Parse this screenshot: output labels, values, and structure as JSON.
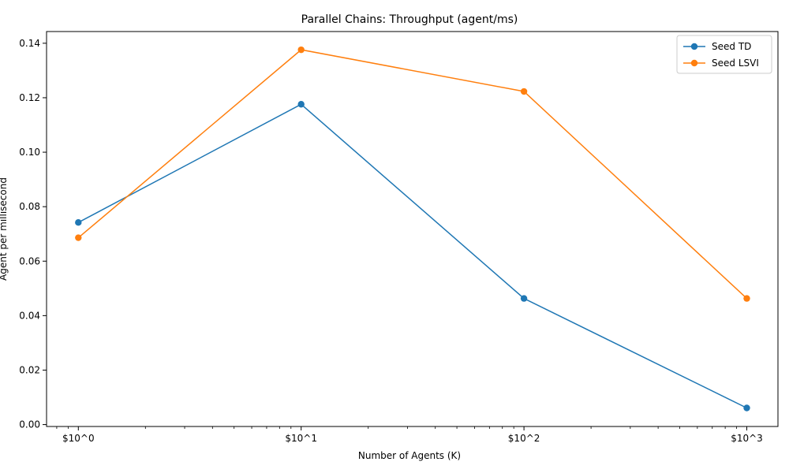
{
  "chart_data": {
    "type": "line",
    "title": "Parallel Chains: Throughput (agent/ms)",
    "xlabel": "Number of Agents (K)",
    "ylabel": "Agent per millisecond",
    "xscale": "log",
    "x": [
      1,
      10,
      100,
      1000
    ],
    "x_tick_labels": [
      "$10^0",
      "$10^1",
      "$10^2",
      "$10^3"
    ],
    "y_ticks": [
      "0.00",
      "0.02",
      "0.04",
      "0.06",
      "0.08",
      "0.10",
      "0.12",
      "0.14"
    ],
    "xlim": [
      0.72,
      1380
    ],
    "ylim": [
      -0.0007,
      0.1443
    ],
    "grid": false,
    "legend_position": "top-right",
    "series": [
      {
        "name": "Seed TD",
        "color": "#1f77b4",
        "values": [
          0.0742,
          0.1176,
          0.0463,
          0.0061
        ]
      },
      {
        "name": "Seed LSVI",
        "color": "#ff7f0e",
        "values": [
          0.0686,
          0.1376,
          0.1223,
          0.0463
        ]
      }
    ]
  }
}
